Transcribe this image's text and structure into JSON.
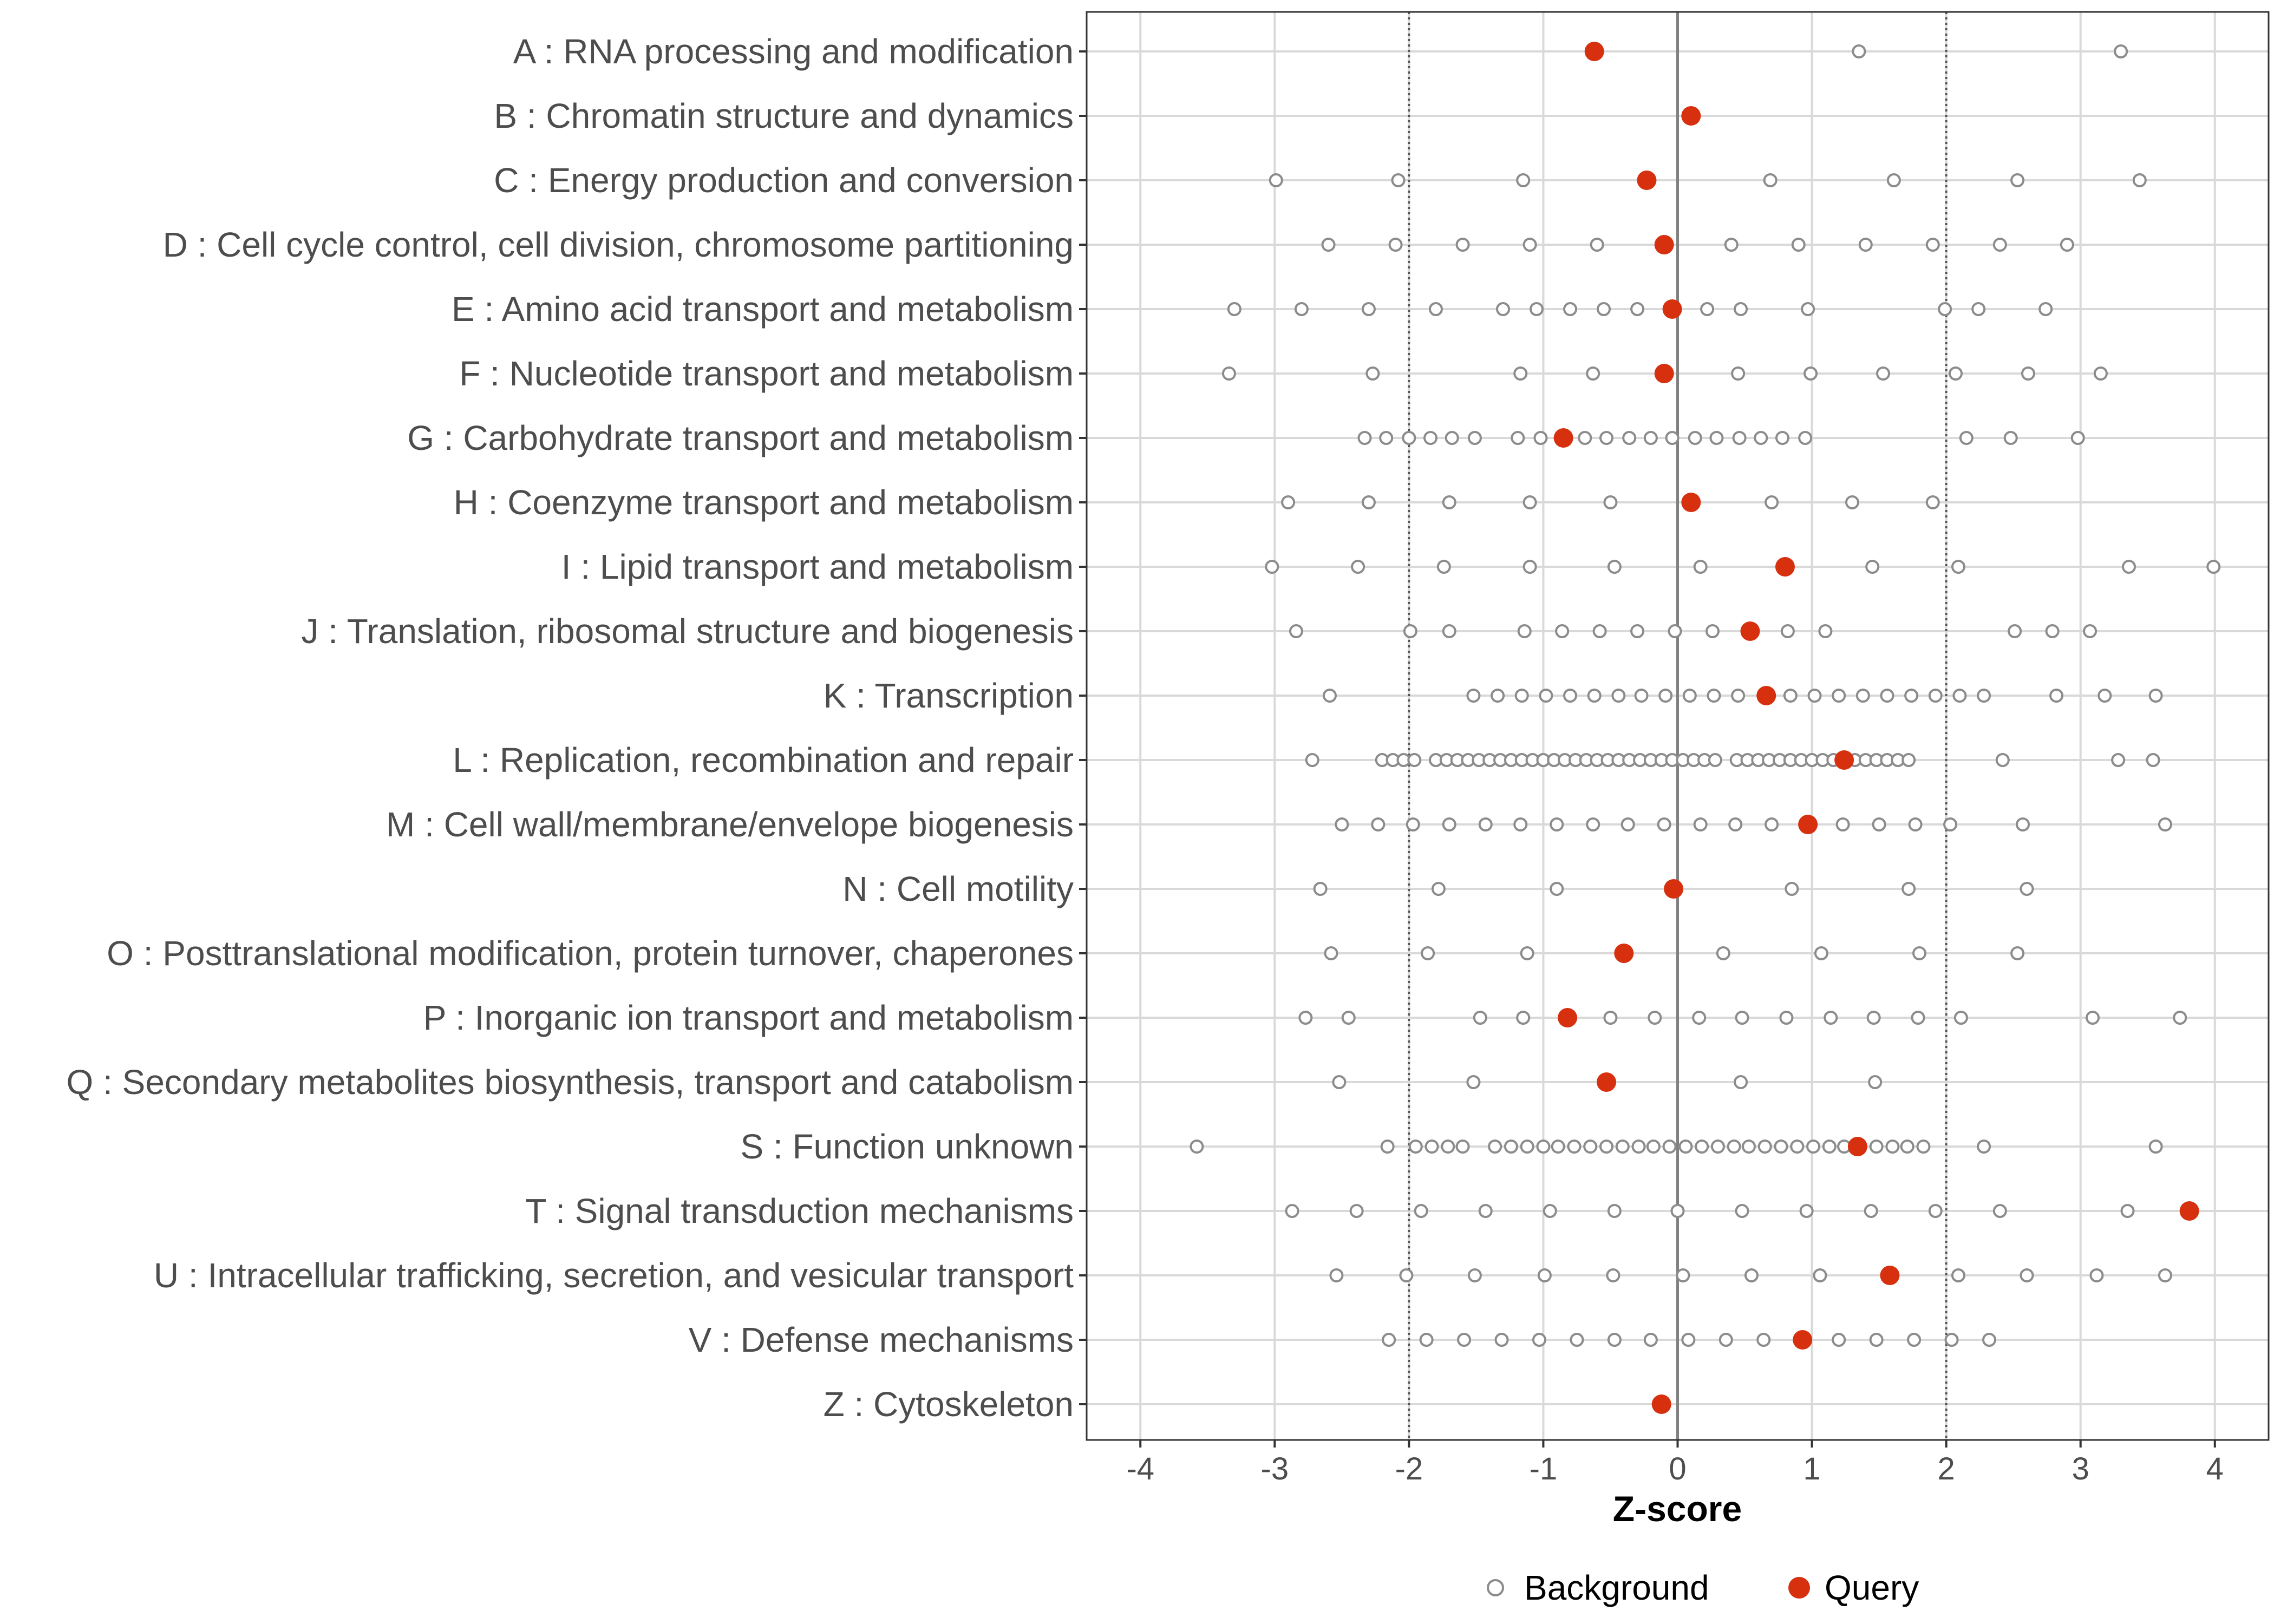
{
  "chart_data": {
    "type": "scatter",
    "xlabel": "Z-score",
    "ylabel": "",
    "xlim": [
      -4.4,
      4.4
    ],
    "x_ticks": [
      -4,
      -3,
      -2,
      -1,
      0,
      1,
      2,
      3,
      4
    ],
    "x_tick_labels": [
      "-4",
      "-3",
      "-2",
      "-1",
      "0",
      "1",
      "2",
      "3",
      "4"
    ],
    "reference_lines": {
      "solid": [
        0
      ],
      "dotted": [
        -2,
        2
      ]
    },
    "grid": true,
    "legend": {
      "position": "bottom",
      "entries": [
        {
          "key": "background",
          "label": "Background"
        },
        {
          "key": "query",
          "label": "Query"
        }
      ]
    },
    "colors": {
      "query": "#d7300f",
      "background": "#8c8c8c",
      "grid": "#d9d9d9",
      "zero_line": "#808080",
      "ref_line": "#555555",
      "label": "#4d4d4d"
    },
    "categories": [
      {
        "label": "A : RNA processing and modification",
        "query": -0.62,
        "background": [
          1.35,
          3.3
        ]
      },
      {
        "label": "B : Chromatin structure and dynamics",
        "query": 0.1,
        "background": []
      },
      {
        "label": "C : Energy production and conversion",
        "query": -0.23,
        "background": [
          -2.99,
          -2.08,
          -1.15,
          0.69,
          1.61,
          2.53,
          3.44
        ]
      },
      {
        "label": "D : Cell cycle control, cell division, chromosome partitioning",
        "query": -0.1,
        "background": [
          -2.6,
          -2.1,
          -1.6,
          -1.1,
          -0.6,
          0.4,
          0.9,
          1.4,
          1.9,
          2.4,
          2.9
        ]
      },
      {
        "label": "E : Amino acid transport and metabolism",
        "query": -0.04,
        "background": [
          -3.3,
          -2.8,
          -2.3,
          -1.8,
          -1.3,
          -1.05,
          -0.8,
          -0.55,
          -0.3,
          0.22,
          0.47,
          0.97,
          1.99,
          2.24,
          2.74
        ]
      },
      {
        "label": "F : Nucleotide transport and metabolism",
        "query": -0.1,
        "background": [
          -3.34,
          -2.27,
          -1.17,
          -0.63,
          0.45,
          0.99,
          1.53,
          2.07,
          2.61,
          3.15
        ]
      },
      {
        "label": "G : Carbohydrate transport and metabolism",
        "query": -0.85,
        "background": [
          -2.33,
          -2.17,
          -2.0,
          -1.84,
          -1.68,
          -1.51,
          -1.19,
          -1.02,
          -0.69,
          -0.53,
          -0.36,
          -0.2,
          -0.04,
          0.13,
          0.29,
          0.46,
          0.62,
          0.78,
          0.95,
          2.15,
          2.48,
          2.98
        ]
      },
      {
        "label": "H : Coenzyme transport and metabolism",
        "query": 0.1,
        "background": [
          -2.9,
          -2.3,
          -1.7,
          -1.1,
          -0.5,
          0.7,
          1.3,
          1.9
        ]
      },
      {
        "label": "I : Lipid transport and metabolism",
        "query": 0.8,
        "background": [
          -3.02,
          -2.38,
          -1.74,
          -1.1,
          -0.47,
          0.17,
          1.45,
          2.09,
          3.36,
          3.99
        ]
      },
      {
        "label": "J : Translation, ribosomal structure and biogenesis",
        "query": 0.54,
        "background": [
          -2.84,
          -1.99,
          -1.7,
          -1.14,
          -0.86,
          -0.58,
          -0.3,
          -0.02,
          0.26,
          0.82,
          1.1,
          2.51,
          2.79,
          3.07
        ]
      },
      {
        "label": "K : Transcription",
        "query": 0.66,
        "background": [
          -2.59,
          -1.52,
          -1.34,
          -1.16,
          -0.98,
          -0.8,
          -0.62,
          -0.44,
          -0.27,
          -0.09,
          0.09,
          0.27,
          0.45,
          0.84,
          1.02,
          1.2,
          1.38,
          1.56,
          1.74,
          1.92,
          2.1,
          2.28,
          2.82,
          3.18,
          3.56
        ]
      },
      {
        "label": "L : Replication, recombination and repair",
        "query": 1.24,
        "background": [
          -2.72,
          -2.2,
          -2.12,
          -2.04,
          -1.96,
          -1.8,
          -1.72,
          -1.64,
          -1.56,
          -1.48,
          -1.4,
          -1.32,
          -1.24,
          -1.16,
          -1.08,
          -1.0,
          -0.92,
          -0.84,
          -0.76,
          -0.68,
          -0.6,
          -0.52,
          -0.44,
          -0.36,
          -0.28,
          -0.2,
          -0.12,
          -0.04,
          0.04,
          0.12,
          0.2,
          0.28,
          0.44,
          0.52,
          0.6,
          0.68,
          0.76,
          0.84,
          0.92,
          1.0,
          1.08,
          1.16,
          1.32,
          1.4,
          1.48,
          1.56,
          1.64,
          1.72,
          2.42,
          3.28,
          3.54
        ]
      },
      {
        "label": "M : Cell wall/membrane/envelope biogenesis",
        "query": 0.97,
        "background": [
          -2.5,
          -2.23,
          -1.97,
          -1.7,
          -1.43,
          -1.17,
          -0.9,
          -0.63,
          -0.37,
          -0.1,
          0.17,
          0.43,
          0.7,
          1.23,
          1.5,
          1.77,
          2.03,
          2.57,
          3.63
        ]
      },
      {
        "label": "N : Cell motility",
        "query": -0.03,
        "background": [
          -2.66,
          -1.78,
          -0.9,
          0.85,
          1.72,
          2.6
        ]
      },
      {
        "label": "O : Posttranslational modification, protein turnover, chaperones",
        "query": -0.4,
        "background": [
          -2.58,
          -1.86,
          -1.12,
          0.34,
          1.07,
          1.8,
          2.53
        ]
      },
      {
        "label": "P : Inorganic ion transport and metabolism",
        "query": -0.82,
        "background": [
          -2.77,
          -2.45,
          -1.47,
          -1.15,
          -0.5,
          -0.17,
          0.16,
          0.48,
          0.81,
          1.14,
          1.46,
          1.79,
          2.11,
          3.09,
          3.74
        ]
      },
      {
        "label": "Q : Secondary metabolites biosynthesis, transport and catabolism",
        "query": -0.53,
        "background": [
          -2.52,
          -1.52,
          0.47,
          1.47
        ]
      },
      {
        "label": "S : Function unknown",
        "query": 1.34,
        "background": [
          -3.58,
          -2.16,
          -1.95,
          -1.83,
          -1.71,
          -1.6,
          -1.36,
          -1.24,
          -1.12,
          -1.0,
          -0.89,
          -0.77,
          -0.65,
          -0.53,
          -0.41,
          -0.29,
          -0.18,
          -0.06,
          0.06,
          0.18,
          0.3,
          0.42,
          0.53,
          0.65,
          0.77,
          0.89,
          1.01,
          1.13,
          1.24,
          1.48,
          1.6,
          1.71,
          1.83,
          2.28,
          3.56
        ]
      },
      {
        "label": "T : Signal transduction mechanisms",
        "query": 3.81,
        "background": [
          -2.87,
          -2.39,
          -1.91,
          -1.43,
          -0.95,
          -0.47,
          0.0,
          0.48,
          0.96,
          1.44,
          1.92,
          2.4,
          3.35
        ]
      },
      {
        "label": "U : Intracellular trafficking, secretion, and vesicular transport",
        "query": 1.58,
        "background": [
          -2.54,
          -2.02,
          -1.51,
          -0.99,
          -0.48,
          0.04,
          0.55,
          1.06,
          2.09,
          2.6,
          3.12,
          3.63
        ]
      },
      {
        "label": "V : Defense mechanisms",
        "query": 0.93,
        "background": [
          -2.15,
          -1.87,
          -1.59,
          -1.31,
          -1.03,
          -0.75,
          -0.47,
          -0.2,
          0.08,
          0.36,
          0.64,
          1.2,
          1.48,
          1.76,
          2.04,
          2.32
        ]
      },
      {
        "label": "Z : Cytoskeleton",
        "query": -0.12,
        "background": []
      }
    ]
  }
}
